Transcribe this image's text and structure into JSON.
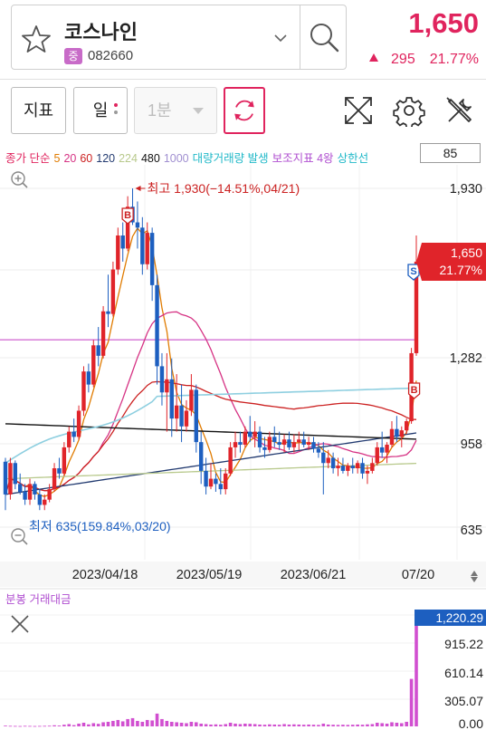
{
  "header": {
    "stock_name": "코스나인",
    "market_badge": "중",
    "stock_code": "082660",
    "price": "1,650",
    "change_amount": "295",
    "change_percent": "21.77%",
    "star_icon": "star-outline-icon",
    "dropdown_icon": "chevron-down-icon",
    "search_icon": "search-icon"
  },
  "toolbar": {
    "indicator_label": "지표",
    "period_label": "일",
    "minute_label": "1분",
    "refresh_icon": "refresh-icon",
    "fullscreen_icon": "fullscreen-icon",
    "settings_icon": "gear-icon",
    "tools_icon": "tools-icon"
  },
  "legend": {
    "items": [
      {
        "text": "종가 단순",
        "color": "#e0245e"
      },
      {
        "text": "5",
        "color": "#e07b00"
      },
      {
        "text": "20",
        "color": "#d63384"
      },
      {
        "text": "60",
        "color": "#cc2222"
      },
      {
        "text": "120",
        "color": "#223a70"
      },
      {
        "text": "224",
        "color": "#b8c98c"
      },
      {
        "text": "480",
        "color": "#111111"
      },
      {
        "text": "1000",
        "color": "#a08fd0"
      },
      {
        "text": "대량거래량 발생",
        "color": "#1fb8c8"
      },
      {
        "text": "보조지표 4왕",
        "color": "#b04fd0"
      },
      {
        "text": "상한선",
        "color": "#1fb8c8"
      }
    ],
    "value_box": "85"
  },
  "chart_data": {
    "type": "candlestick",
    "y_axis_ticks": [
      "1,930",
      "1,282",
      "958",
      "635"
    ],
    "x_axis_ticks": [
      "2023/04/18",
      "2023/05/19",
      "2023/06/21",
      "07/20"
    ],
    "high_annotation": "최고 1,930(−14.51%,04/21)",
    "low_annotation": "최저 635(159.84%,03/20)",
    "current_price_tag": "1,650",
    "current_change_tag": "21.77%",
    "signal_markers": [
      "B",
      "S",
      "B"
    ],
    "reference_line_value": 1282,
    "candles": [
      [
        885,
        900,
        700,
        760
      ],
      [
        760,
        900,
        740,
        880
      ],
      [
        880,
        890,
        780,
        800
      ],
      [
        800,
        840,
        760,
        770
      ],
      [
        770,
        800,
        720,
        740
      ],
      [
        740,
        820,
        720,
        800
      ],
      [
        800,
        810,
        740,
        760
      ],
      [
        760,
        780,
        700,
        720
      ],
      [
        720,
        760,
        700,
        740
      ],
      [
        740,
        800,
        730,
        780
      ],
      [
        780,
        880,
        770,
        860
      ],
      [
        860,
        900,
        820,
        840
      ],
      [
        840,
        960,
        830,
        940
      ],
      [
        940,
        1020,
        920,
        1000
      ],
      [
        1000,
        1050,
        960,
        980
      ],
      [
        980,
        1100,
        970,
        1080
      ],
      [
        1080,
        1250,
        1060,
        1230
      ],
      [
        1230,
        1260,
        1150,
        1180
      ],
      [
        1180,
        1350,
        1170,
        1330
      ],
      [
        1330,
        1400,
        1250,
        1290
      ],
      [
        1290,
        1480,
        1280,
        1460
      ],
      [
        1460,
        1600,
        1400,
        1450
      ],
      [
        1450,
        1650,
        1440,
        1620
      ],
      [
        1620,
        1780,
        1600,
        1750
      ],
      [
        1750,
        1800,
        1650,
        1700
      ],
      [
        1700,
        1900,
        1690,
        1860
      ],
      [
        1860,
        1930,
        1790,
        1800
      ],
      [
        1800,
        1880,
        1700,
        1780
      ],
      [
        1780,
        1820,
        1600,
        1640
      ],
      [
        1640,
        1800,
        1620,
        1760
      ],
      [
        1760,
        1780,
        1500,
        1560
      ],
      [
        1560,
        1600,
        1180,
        1250
      ],
      [
        1250,
        1300,
        1100,
        1150
      ],
      [
        1150,
        1300,
        1000,
        1200
      ],
      [
        1200,
        1280,
        980,
        1050
      ],
      [
        1050,
        1220,
        1000,
        1100
      ],
      [
        1100,
        1180,
        960,
        1020
      ],
      [
        1020,
        1120,
        1000,
        1080
      ],
      [
        1080,
        1220,
        1060,
        1160
      ],
      [
        1160,
        1180,
        920,
        960
      ],
      [
        960,
        1000,
        800,
        850
      ],
      [
        850,
        900,
        760,
        790
      ],
      [
        790,
        880,
        780,
        820
      ],
      [
        820,
        840,
        770,
        800
      ],
      [
        800,
        860,
        760,
        780
      ],
      [
        780,
        860,
        760,
        840
      ],
      [
        840,
        960,
        830,
        940
      ],
      [
        940,
        1000,
        900,
        960
      ],
      [
        960,
        1000,
        920,
        950
      ],
      [
        950,
        1020,
        940,
        1000
      ],
      [
        1000,
        1060,
        960,
        980
      ],
      [
        980,
        1040,
        940,
        1000
      ],
      [
        1000,
        1020,
        920,
        940
      ],
      [
        940,
        980,
        900,
        930
      ],
      [
        930,
        1000,
        920,
        980
      ],
      [
        980,
        1020,
        940,
        960
      ],
      [
        960,
        1000,
        930,
        950
      ],
      [
        950,
        990,
        920,
        970
      ],
      [
        970,
        1000,
        930,
        940
      ],
      [
        940,
        990,
        920,
        960
      ],
      [
        960,
        1000,
        930,
        970
      ],
      [
        970,
        1000,
        940,
        950
      ],
      [
        950,
        980,
        930,
        960
      ],
      [
        960,
        980,
        920,
        935
      ],
      [
        935,
        960,
        900,
        920
      ],
      [
        920,
        960,
        760,
        880
      ],
      [
        880,
        930,
        860,
        900
      ],
      [
        900,
        920,
        840,
        860
      ],
      [
        860,
        900,
        830,
        870
      ],
      [
        870,
        900,
        840,
        850
      ],
      [
        850,
        880,
        830,
        870
      ],
      [
        870,
        900,
        840,
        860
      ],
      [
        860,
        890,
        840,
        880
      ],
      [
        880,
        900,
        820,
        840
      ],
      [
        840,
        870,
        800,
        850
      ],
      [
        850,
        900,
        840,
        880
      ],
      [
        880,
        960,
        870,
        940
      ],
      [
        940,
        1000,
        900,
        920
      ],
      [
        920,
        960,
        880,
        950
      ],
      [
        950,
        1040,
        940,
        1010
      ],
      [
        1010,
        1060,
        960,
        980
      ],
      [
        980,
        1020,
        940,
        1005
      ],
      [
        1005,
        1050,
        990,
        1040
      ],
      [
        1040,
        1320,
        1030,
        1300
      ],
      [
        1300,
        1750,
        1290,
        1650
      ]
    ],
    "volume_panel": {
      "title": "분봉 거래대금",
      "close_icon": "close-icon",
      "y_ticks": [
        "1,220.29",
        "915.22",
        "610.14",
        "305.07",
        "0.00"
      ],
      "max_value": 1220.29,
      "current_value": 1220.29,
      "bars": [
        8,
        6,
        5,
        4,
        6,
        5,
        4,
        5,
        6,
        7,
        12,
        9,
        18,
        25,
        14,
        30,
        40,
        22,
        35,
        28,
        45,
        50,
        60,
        70,
        55,
        80,
        90,
        60,
        50,
        70,
        65,
        140,
        80,
        60,
        50,
        45,
        40,
        35,
        50,
        45,
        30,
        25,
        20,
        22,
        18,
        25,
        40,
        30,
        25,
        30,
        28,
        25,
        20,
        18,
        22,
        20,
        18,
        25,
        20,
        22,
        20,
        18,
        20,
        18,
        16,
        30,
        20,
        18,
        16,
        18,
        16,
        18,
        20,
        18,
        22,
        25,
        40,
        35,
        30,
        45,
        40,
        35,
        50,
        520,
        1220.29
      ]
    }
  }
}
